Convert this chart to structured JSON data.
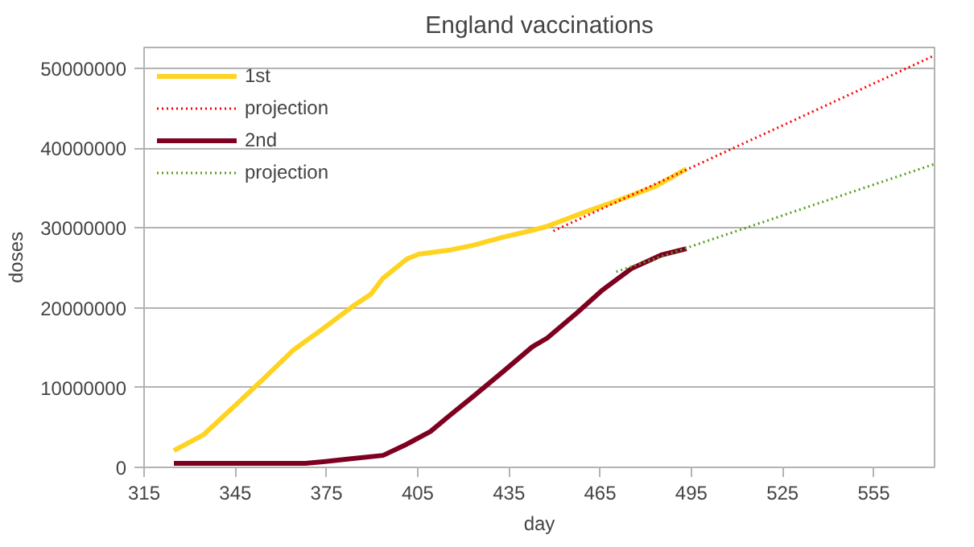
{
  "chart_data": {
    "type": "line",
    "title": "England vaccinations",
    "xlabel": "day",
    "ylabel": "doses",
    "xlim": [
      315,
      575
    ],
    "xticks": [
      315,
      345,
      375,
      405,
      435,
      465,
      495,
      525,
      555
    ],
    "ylim": [
      0,
      52600000
    ],
    "yticks": [
      0,
      10000000,
      20000000,
      30000000,
      40000000,
      50000000
    ],
    "grid": "y",
    "legend": "top left",
    "marker": "none",
    "series": [
      {
        "name": "1st",
        "color": "#ffd320",
        "line_style": "solid",
        "x": [
          324.8,
          334.6,
          344.5,
          354.3,
          364.1,
          373.9,
          383.7,
          389.6,
          393.6,
          401.4,
          405.3,
          415.2,
          423,
          432.8,
          442.7,
          447.6,
          459.5,
          471.3,
          483.2,
          493.4
        ],
        "values": [
          2100000,
          4100000,
          7600000,
          11100000,
          14700000,
          17400000,
          20200000,
          21700000,
          23700000,
          26100000,
          26700000,
          27200000,
          27800000,
          28800000,
          29700000,
          30200000,
          31900000,
          33500000,
          35200000,
          37400000
        ]
      },
      {
        "name": "projection",
        "color": "#ff0000",
        "line_style": "dotted",
        "x": [
          449.6,
          575
        ],
        "values": [
          29600000,
          51600000
        ]
      },
      {
        "name": "2nd",
        "color": "#7e0021",
        "line_style": "solid",
        "x": [
          324.8,
          368,
          373.9,
          383.7,
          393.6,
          401.4,
          409.2,
          415.2,
          423,
          432.8,
          442.7,
          447.6,
          457.5,
          465.4,
          475.3,
          485.1,
          493.4
        ],
        "values": [
          500000,
          500000,
          700000,
          1100000,
          1500000,
          2900000,
          4500000,
          6400000,
          8800000,
          11900000,
          15100000,
          16200000,
          19400000,
          22100000,
          24900000,
          26600000,
          27400000
        ]
      },
      {
        "name": "projection",
        "color": "#579d1c",
        "line_style": "dotted",
        "x": [
          470.3,
          575
        ],
        "values": [
          24500000,
          38000000
        ]
      }
    ]
  }
}
